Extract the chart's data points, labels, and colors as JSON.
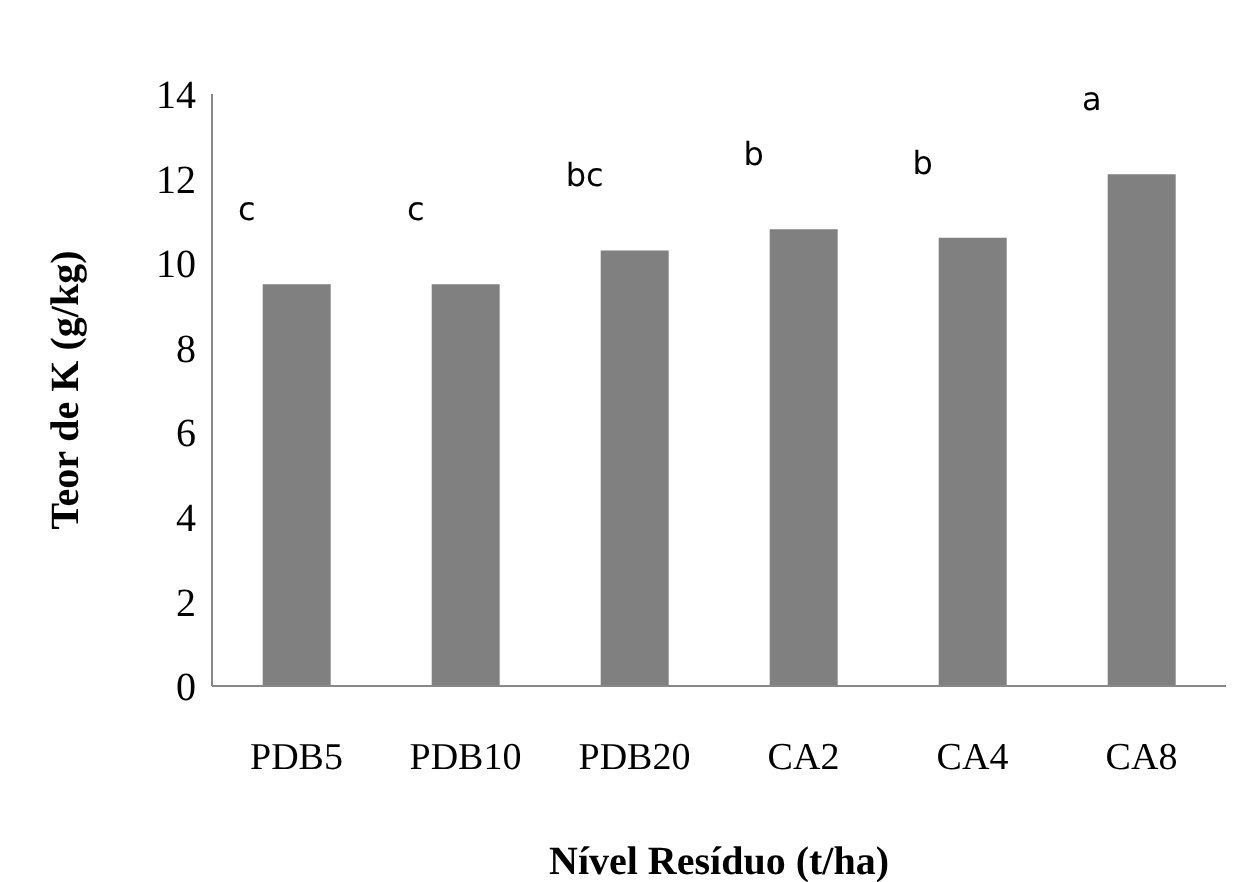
{
  "chart_data": {
    "type": "bar",
    "xlabel": "Nível Resíduo (t/ha)",
    "ylabel": "Teor de K (g/kg)",
    "categories": [
      "PDB5",
      "PDB10",
      "PDB20",
      "CA2",
      "CA4",
      "CA8"
    ],
    "values": [
      9.5,
      9.5,
      10.3,
      10.8,
      10.6,
      12.1
    ],
    "color": "#808080",
    "ylim": [
      0,
      14
    ],
    "yticks": [
      0,
      2,
      4,
      6,
      8,
      10,
      12,
      14
    ],
    "grid": false,
    "annotations": [
      "c",
      "c",
      "bc",
      "b",
      "b",
      "a"
    ]
  }
}
